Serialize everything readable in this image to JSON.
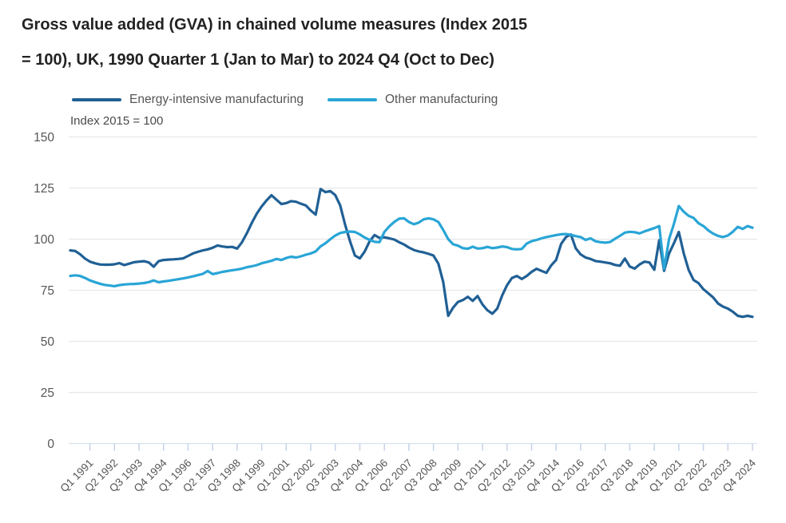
{
  "title": {
    "line1": "Gross value added (GVA) in chained volume measures (Index 2015",
    "line2": "= 100), UK, 1990 Quarter 1 (Jan to Mar) to 2024 Q4 (Oct to Dec)"
  },
  "axis_note": "Index 2015 = 100",
  "colors": {
    "energy_intensive": "#206095",
    "other_manufacturing": "#29a5d6",
    "gridline": "#e7e7e7",
    "axis_tick": "#c5d3e6",
    "tick_text": "#565656",
    "title_text": "#222222"
  },
  "chart_data": {
    "type": "line",
    "title": "Gross value added (GVA) in chained volume measures (Index 2015 = 100), UK, 1990 Quarter 1 (Jan to Mar) to 2024 Q4 (Oct to Dec)",
    "y_axis_note": "Index 2015 = 100",
    "x_unit": "quarter",
    "x_start": "Q1 1990",
    "x_end": "Q4 2024",
    "points_per_series": 140,
    "ylim": [
      0,
      150
    ],
    "y_ticks": [
      0,
      25,
      50,
      75,
      100,
      125,
      150
    ],
    "grid": true,
    "legend_position": "top",
    "x_tick_step_quarters": 5,
    "x_first_tick_index": 4,
    "x_tick_labels": [
      "Q1 1991",
      "Q2 1992",
      "Q3 1993",
      "Q4 1994",
      "Q1 1996",
      "Q2 1997",
      "Q3 1998",
      "Q4 1999",
      "Q1 2001",
      "Q2 2002",
      "Q3 2003",
      "Q4 2004",
      "Q1 2006",
      "Q2 2007",
      "Q3 2008",
      "Q4 2009",
      "Q1 2011",
      "Q2 2012",
      "Q3 2013",
      "Q4 2014",
      "Q1 2016",
      "Q2 2017",
      "Q3 2018",
      "Q4 2019",
      "Q1 2021",
      "Q2 2022",
      "Q3 2023",
      "Q4 2024"
    ],
    "series": [
      {
        "name": "Energy-intensive manufacturing",
        "color": "#206095",
        "values": [
          94.5,
          94.2,
          92.6,
          90.5,
          89.0,
          88.2,
          87.6,
          87.5,
          87.5,
          87.7,
          88.3,
          87.3,
          88.0,
          88.7,
          89.0,
          89.2,
          88.6,
          86.5,
          89.2,
          89.8,
          90.0,
          90.1,
          90.3,
          90.6,
          91.8,
          93.0,
          93.8,
          94.5,
          95.0,
          95.8,
          96.9,
          96.4,
          96.1,
          96.2,
          95.4,
          98.5,
          103.0,
          108.0,
          112.5,
          116.0,
          119.0,
          121.5,
          119.3,
          117.2,
          117.6,
          118.6,
          118.3,
          117.3,
          116.5,
          114.0,
          112.0,
          124.5,
          123.0,
          123.5,
          121.5,
          116.5,
          107.0,
          99.0,
          92.0,
          90.6,
          94.0,
          99.0,
          102.0,
          100.6,
          100.9,
          100.4,
          99.8,
          98.5,
          97.4,
          95.9,
          94.7,
          94.0,
          93.5,
          92.8,
          92.0,
          88.0,
          79.0,
          62.5,
          66.5,
          69.3,
          70.2,
          71.8,
          69.8,
          72.2,
          68.0,
          65.2,
          63.5,
          66.0,
          72.5,
          77.5,
          81.0,
          82.0,
          80.5,
          82.0,
          84.0,
          85.5,
          84.5,
          83.5,
          87.2,
          89.8,
          97.6,
          101.0,
          102.3,
          95.5,
          92.5,
          91.0,
          90.3,
          89.3,
          89.0,
          88.6,
          88.2,
          87.4,
          87.0,
          90.5,
          86.6,
          85.6,
          87.6,
          89.0,
          88.6,
          85.0,
          99.5,
          84.5,
          93.0,
          98.0,
          103.5,
          93.0,
          85.0,
          80.0,
          78.5,
          75.5,
          73.5,
          71.5,
          68.5,
          67.0,
          66.0,
          64.5,
          62.5,
          62.0,
          62.5,
          62.0
        ]
      },
      {
        "name": "Other manufacturing",
        "color": "#29a5d6",
        "values": [
          82.0,
          82.3,
          82.0,
          81.0,
          79.8,
          79.0,
          78.2,
          77.6,
          77.3,
          77.0,
          77.5,
          77.8,
          78.0,
          78.1,
          78.3,
          78.5,
          79.0,
          79.8,
          78.9,
          79.3,
          79.6,
          80.0,
          80.4,
          80.8,
          81.3,
          81.8,
          82.4,
          83.0,
          84.4,
          82.9,
          83.4,
          84.0,
          84.4,
          84.8,
          85.1,
          85.6,
          86.3,
          86.7,
          87.3,
          88.2,
          88.8,
          89.4,
          90.3,
          89.8,
          90.8,
          91.4,
          91.0,
          91.6,
          92.4,
          93.0,
          94.0,
          96.5,
          98.0,
          100.0,
          101.8,
          103.0,
          103.5,
          103.7,
          103.5,
          102.3,
          100.8,
          99.6,
          98.7,
          98.5,
          103.5,
          106.3,
          108.4,
          110.0,
          110.2,
          108.4,
          107.3,
          108.1,
          109.7,
          110.2,
          109.7,
          108.4,
          104.5,
          100.0,
          97.5,
          96.8,
          95.6,
          95.3,
          96.3,
          95.4,
          95.6,
          96.2,
          95.6,
          95.9,
          96.4,
          96.1,
          95.2,
          95.0,
          95.2,
          97.8,
          99.0,
          99.6,
          100.4,
          101.0,
          101.5,
          102.0,
          102.4,
          102.5,
          102.1,
          101.5,
          101.0,
          99.6,
          100.4,
          99.0,
          98.5,
          98.3,
          98.6,
          100.2,
          101.6,
          103.2,
          103.6,
          103.4,
          102.8,
          103.8,
          104.6,
          105.4,
          106.4,
          85.5,
          100.0,
          107.5,
          116.2,
          113.4,
          111.4,
          110.4,
          107.8,
          106.4,
          104.3,
          102.7,
          101.6,
          101.0,
          101.8,
          103.6,
          106.0,
          105.0,
          106.4,
          105.6
        ]
      }
    ]
  }
}
